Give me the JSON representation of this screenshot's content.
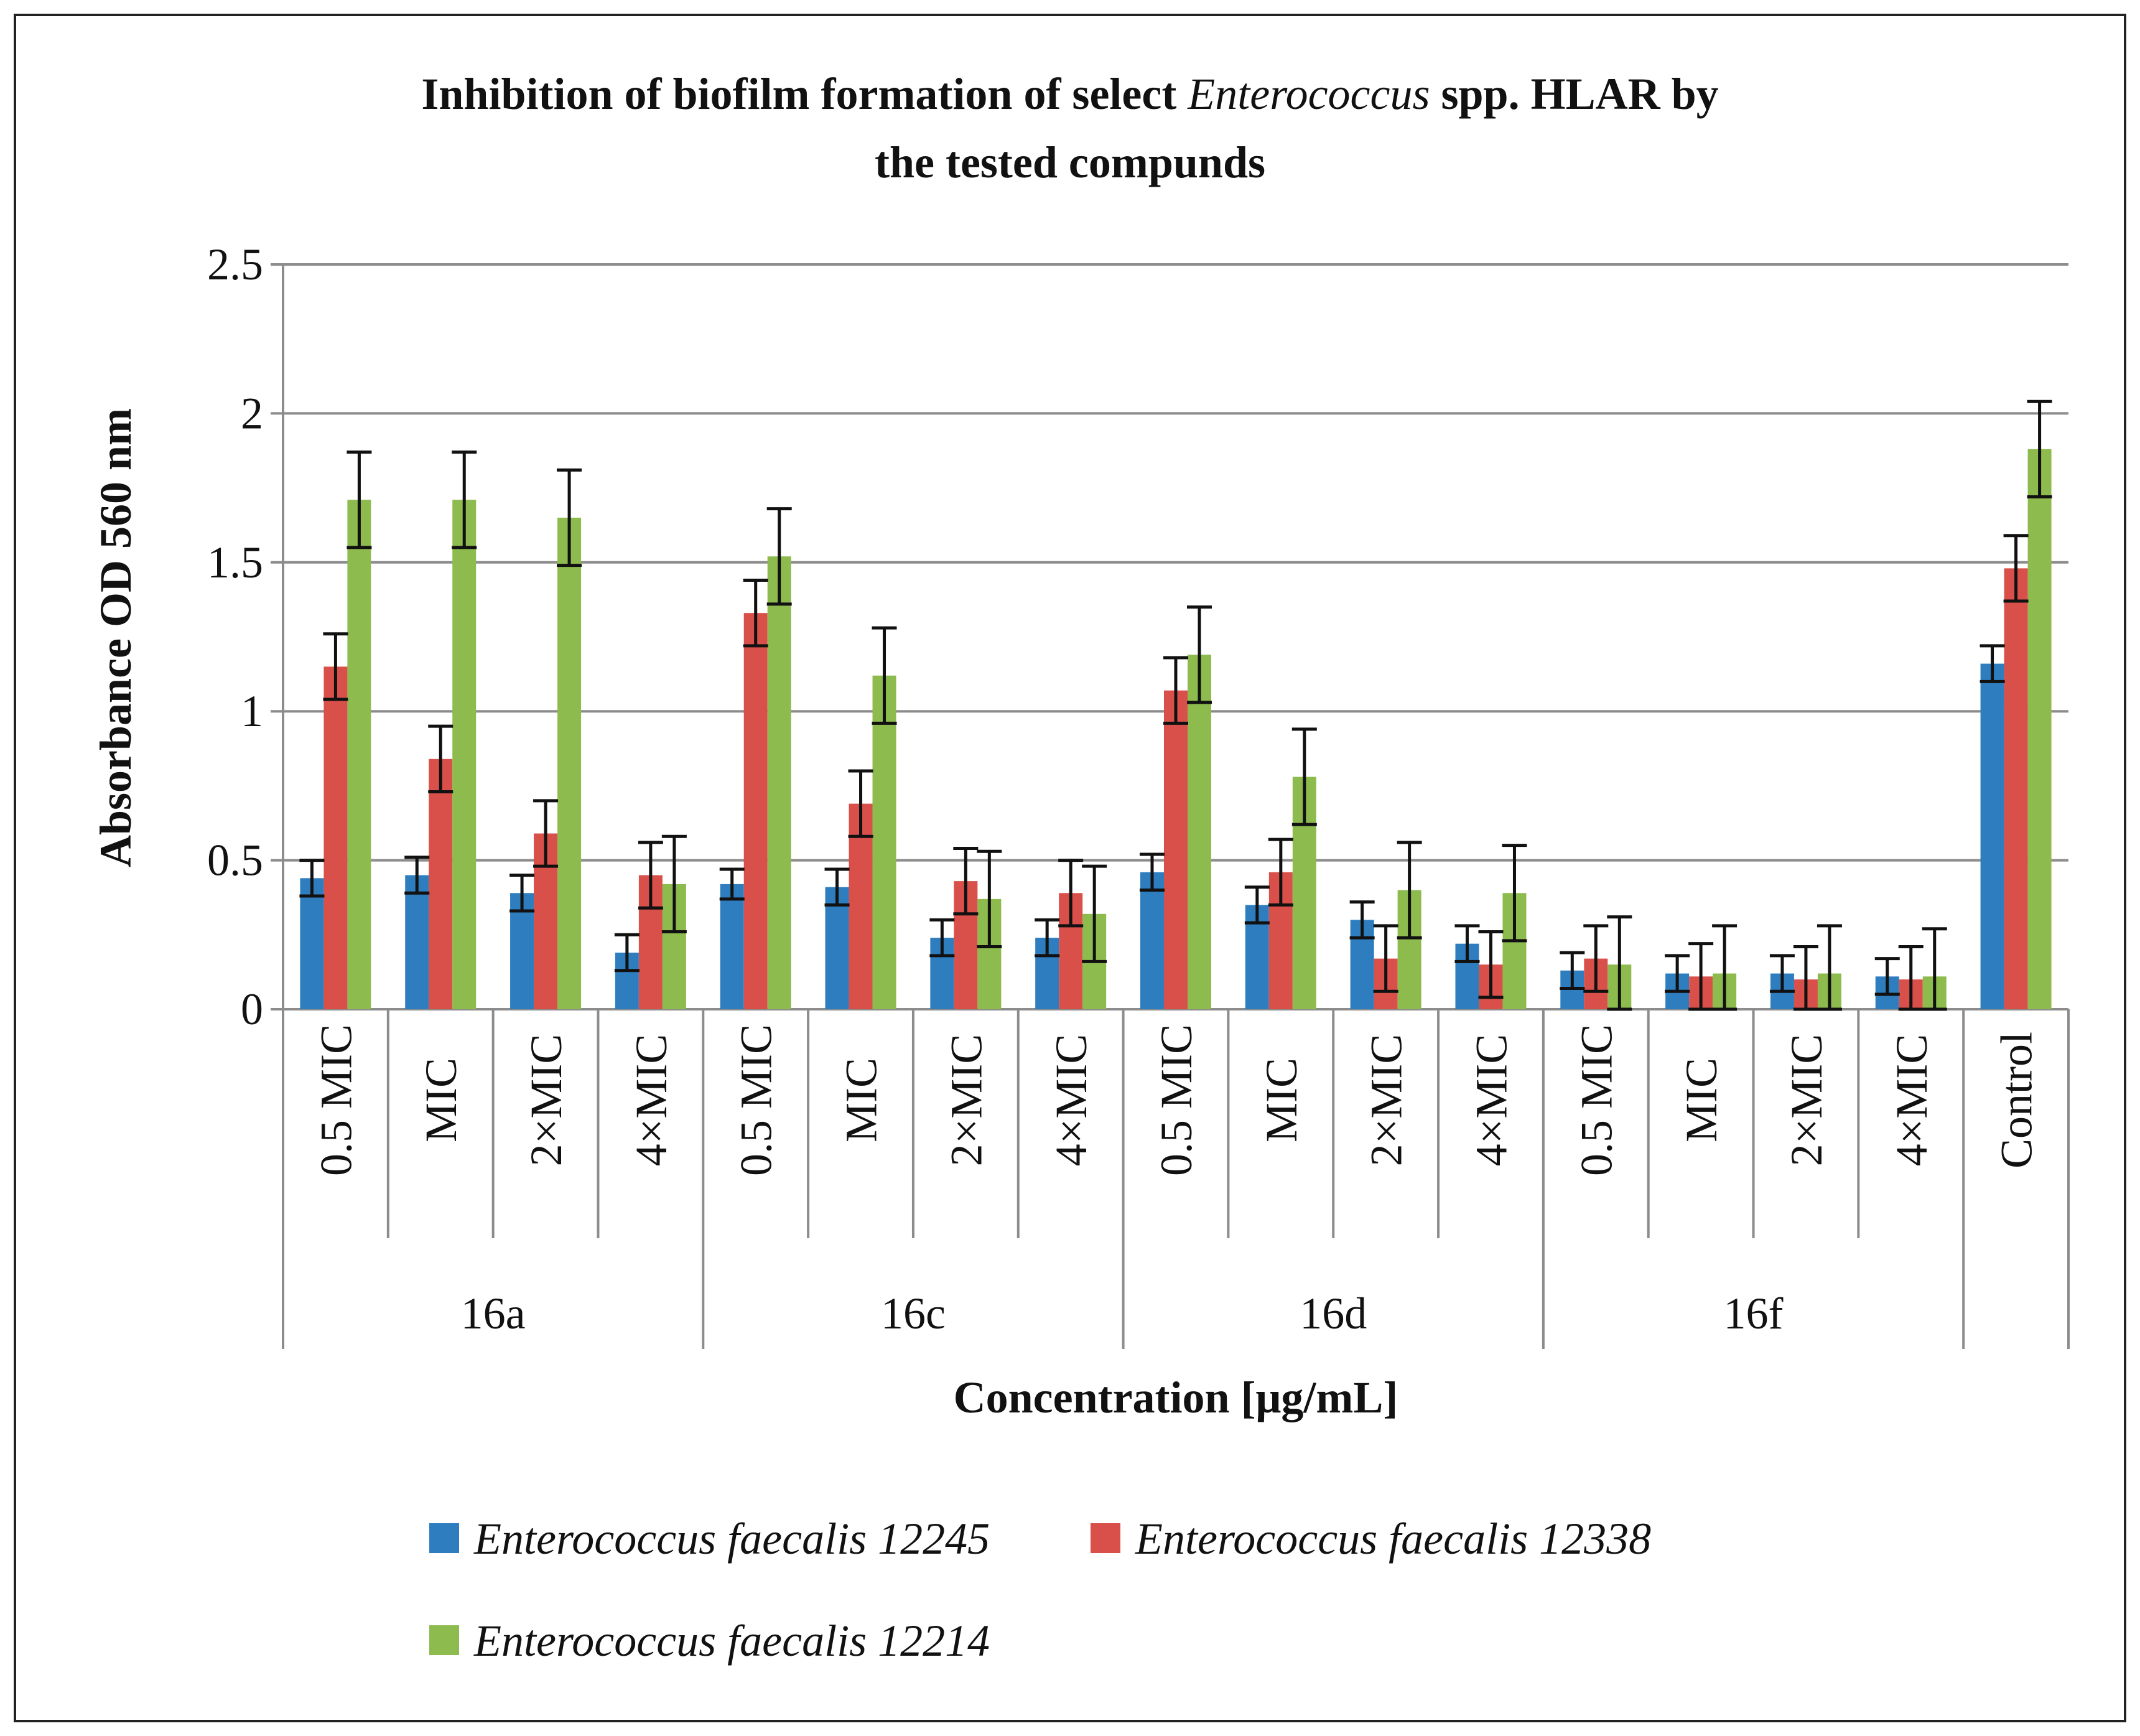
{
  "chart_data": {
    "type": "bar",
    "title_line1_prefix": "Inhibition of biofilm formation of select ",
    "title_line1_italic": "Enterococcus",
    "title_line1_suffix": " spp. HLAR by",
    "title_line2": "the tested compunds",
    "xlabel": "Concentration [μg/mL]",
    "ylabel": "Absorbance  OD 560 nm",
    "ylim": [
      0,
      2.5
    ],
    "yticks": [
      "0",
      "0.5",
      "1",
      "1.5",
      "2",
      "2.5"
    ],
    "ytick_values": [
      0,
      0.5,
      1,
      1.5,
      2,
      2.5
    ],
    "grid": true,
    "legend_position": "bottom",
    "groups": [
      {
        "name": "16a",
        "categories": [
          "0.5 MIC",
          "MIC",
          "2×MIC",
          "4×MIC"
        ]
      },
      {
        "name": "16c",
        "categories": [
          "0.5 MIC",
          "MIC",
          "2×MIC",
          "4×MIC"
        ]
      },
      {
        "name": "16d",
        "categories": [
          "0.5 MIC",
          "MIC",
          "2×MIC",
          "4×MIC"
        ]
      },
      {
        "name": "16f",
        "categories": [
          "0.5 MIC",
          "MIC",
          "2×MIC",
          "4×MIC"
        ]
      },
      {
        "name": "",
        "categories": [
          "Control"
        ]
      }
    ],
    "series": [
      {
        "name": "Enterococcus faecalis 12245",
        "color": "#2e7ebf",
        "values": [
          0.44,
          0.45,
          0.39,
          0.19,
          0.42,
          0.41,
          0.24,
          0.24,
          0.46,
          0.35,
          0.3,
          0.22,
          0.13,
          0.12,
          0.12,
          0.11,
          1.16
        ],
        "errors": [
          0.06,
          0.06,
          0.06,
          0.06,
          0.05,
          0.06,
          0.06,
          0.06,
          0.06,
          0.06,
          0.06,
          0.06,
          0.06,
          0.06,
          0.06,
          0.06,
          0.06
        ]
      },
      {
        "name": "Enterococcus faecalis  12338",
        "color": "#d9504a",
        "values": [
          1.15,
          0.84,
          0.59,
          0.45,
          1.33,
          0.69,
          0.43,
          0.39,
          1.07,
          0.46,
          0.17,
          0.15,
          0.17,
          0.11,
          0.1,
          0.1,
          1.48
        ],
        "errors": [
          0.11,
          0.11,
          0.11,
          0.11,
          0.11,
          0.11,
          0.11,
          0.11,
          0.11,
          0.11,
          0.11,
          0.11,
          0.11,
          0.11,
          0.11,
          0.11,
          0.11
        ]
      },
      {
        "name": "Enterococcus  faecalis 12214",
        "color": "#8dbb4e",
        "values": [
          1.71,
          1.71,
          1.65,
          0.42,
          1.52,
          1.12,
          0.37,
          0.32,
          1.19,
          0.78,
          0.4,
          0.39,
          0.15,
          0.12,
          0.12,
          0.11,
          1.88
        ],
        "errors": [
          0.16,
          0.16,
          0.16,
          0.16,
          0.16,
          0.16,
          0.16,
          0.16,
          0.16,
          0.16,
          0.16,
          0.16,
          0.16,
          0.16,
          0.16,
          0.16,
          0.16
        ]
      }
    ]
  }
}
